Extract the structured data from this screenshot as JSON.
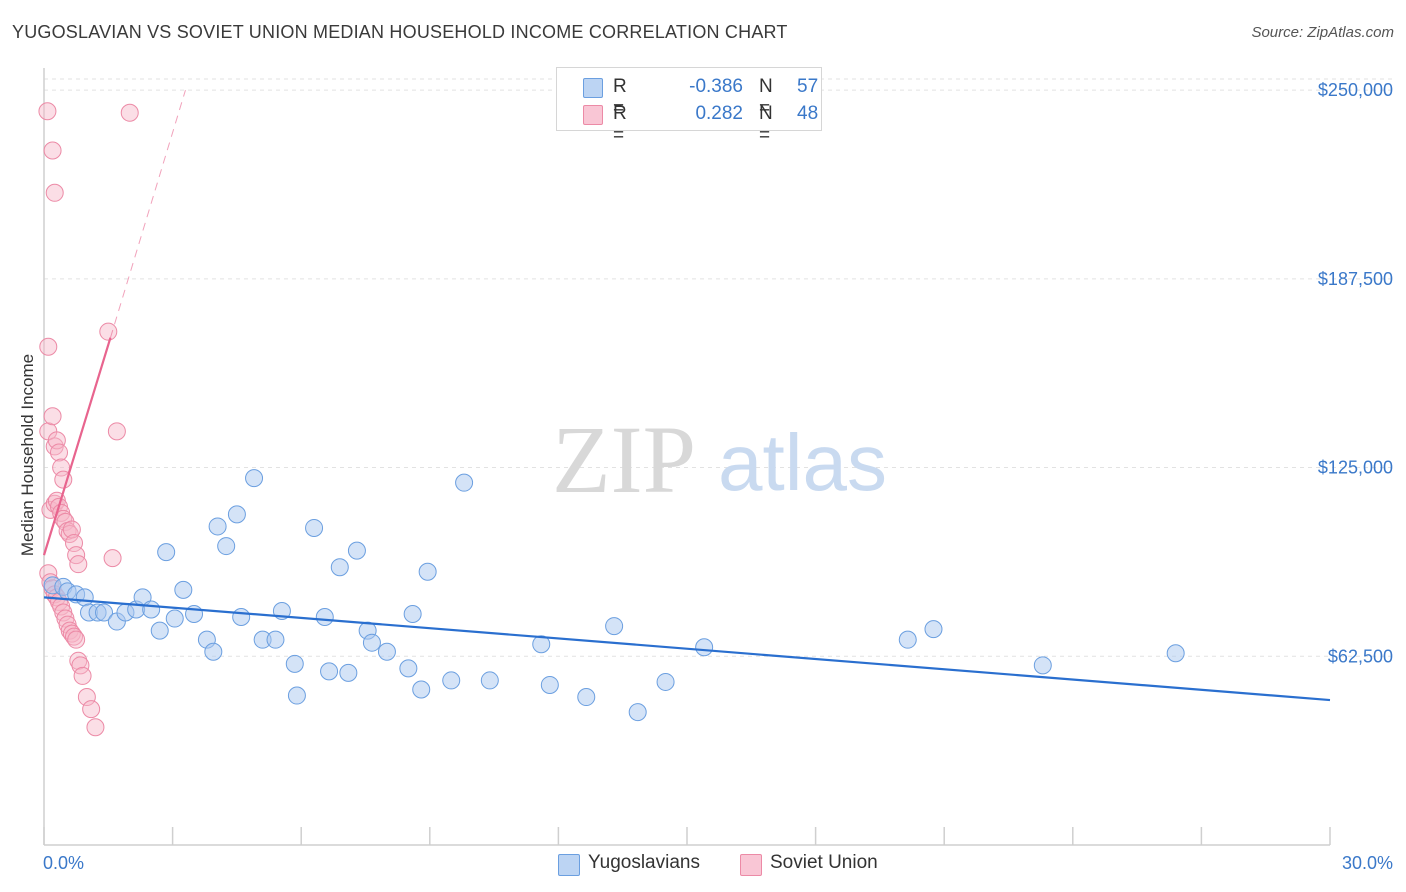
{
  "header": {
    "title": "YUGOSLAVIAN VS SOVIET UNION MEDIAN HOUSEHOLD INCOME CORRELATION CHART",
    "source": "Source: ZipAtlas.com"
  },
  "watermark": {
    "zip": "ZIP",
    "atlas": "atlas"
  },
  "legend": {
    "rows": [
      {
        "r_label": "R =",
        "r_value": "-0.386",
        "n_label": "N =",
        "n_value": "57"
      },
      {
        "r_label": "R =",
        "r_value": "0.282",
        "n_label": "N =",
        "n_value": "48"
      }
    ]
  },
  "colors": {
    "blue_fill": "#a9c8ef",
    "blue_stroke": "#6b9fe0",
    "blue_line": "#2a6fcf",
    "pink_fill": "#f6b6c8",
    "pink_stroke": "#ec8aa6",
    "pink_line": "#e8648e",
    "grid": "#e2e2e2",
    "tick_text": "#3a78c9"
  },
  "chart_data": {
    "type": "scatter",
    "title": "YUGOSLAVIAN VS SOVIET UNION MEDIAN HOUSEHOLD INCOME CORRELATION CHART",
    "xlabel": "",
    "ylabel": "Median Household Income",
    "xlim": [
      0,
      30
    ],
    "ylim": [
      0,
      256000
    ],
    "x_tick_labels": [
      "0.0%",
      "30.0%"
    ],
    "y_ticks": [
      62500,
      125000,
      187500,
      250000
    ],
    "y_tick_labels": [
      "$62,500",
      "$125,000",
      "$187,500",
      "$250,000"
    ],
    "legend_position": "bottom",
    "series": [
      {
        "name": "Yugoslavians",
        "color": "blue",
        "points": [
          [
            0.2,
            86000
          ],
          [
            0.45,
            85500
          ],
          [
            0.55,
            84000
          ],
          [
            0.75,
            83000
          ],
          [
            0.95,
            82000
          ],
          [
            1.05,
            77000
          ],
          [
            1.25,
            77000
          ],
          [
            1.4,
            77000
          ],
          [
            1.7,
            74000
          ],
          [
            1.9,
            77000
          ],
          [
            2.15,
            78000
          ],
          [
            2.3,
            82000
          ],
          [
            2.5,
            78000
          ],
          [
            2.7,
            71000
          ],
          [
            2.85,
            97000
          ],
          [
            3.05,
            75000
          ],
          [
            3.25,
            84500
          ],
          [
            3.5,
            76500
          ],
          [
            3.8,
            68000
          ],
          [
            3.95,
            64000
          ],
          [
            4.05,
            105500
          ],
          [
            4.25,
            99000
          ],
          [
            4.5,
            109500
          ],
          [
            4.6,
            75500
          ],
          [
            4.9,
            121500
          ],
          [
            5.1,
            68000
          ],
          [
            5.4,
            68000
          ],
          [
            5.55,
            77500
          ],
          [
            5.85,
            60000
          ],
          [
            5.9,
            49500
          ],
          [
            6.3,
            105000
          ],
          [
            6.55,
            75500
          ],
          [
            6.65,
            57500
          ],
          [
            6.9,
            92000
          ],
          [
            7.1,
            57000
          ],
          [
            7.3,
            97500
          ],
          [
            7.55,
            71000
          ],
          [
            7.65,
            67000
          ],
          [
            8.0,
            64000
          ],
          [
            8.5,
            58500
          ],
          [
            8.6,
            76500
          ],
          [
            8.8,
            51500
          ],
          [
            8.95,
            90500
          ],
          [
            9.5,
            54500
          ],
          [
            9.8,
            120000
          ],
          [
            10.4,
            54500
          ],
          [
            11.6,
            66500
          ],
          [
            11.8,
            53000
          ],
          [
            12.65,
            49000
          ],
          [
            13.3,
            72500
          ],
          [
            13.85,
            44000
          ],
          [
            14.5,
            54000
          ],
          [
            15.4,
            65500
          ],
          [
            20.15,
            68000
          ],
          [
            20.75,
            71500
          ],
          [
            23.3,
            59500
          ],
          [
            26.4,
            63500
          ]
        ],
        "trend": [
          [
            0,
            82000
          ],
          [
            30,
            48000
          ]
        ]
      },
      {
        "name": "Soviet Union",
        "color": "pink",
        "points": [
          [
            0.08,
            243000
          ],
          [
            0.2,
            230000
          ],
          [
            0.25,
            216000
          ],
          [
            0.1,
            165000
          ],
          [
            0.1,
            137000
          ],
          [
            0.2,
            142000
          ],
          [
            0.25,
            132000
          ],
          [
            0.3,
            134000
          ],
          [
            0.35,
            130000
          ],
          [
            0.4,
            125000
          ],
          [
            0.45,
            121000
          ],
          [
            0.15,
            111000
          ],
          [
            0.25,
            113000
          ],
          [
            0.3,
            114000
          ],
          [
            0.35,
            112000
          ],
          [
            0.4,
            110000
          ],
          [
            0.45,
            108000
          ],
          [
            0.5,
            107000
          ],
          [
            0.55,
            104000
          ],
          [
            0.6,
            103000
          ],
          [
            0.65,
            104500
          ],
          [
            0.7,
            100000
          ],
          [
            0.75,
            96000
          ],
          [
            0.8,
            93000
          ],
          [
            0.1,
            90000
          ],
          [
            0.15,
            87000
          ],
          [
            0.2,
            85000
          ],
          [
            0.25,
            83000
          ],
          [
            0.3,
            82000
          ],
          [
            0.35,
            80500
          ],
          [
            0.4,
            79000
          ],
          [
            0.45,
            77000
          ],
          [
            0.5,
            75000
          ],
          [
            0.55,
            73000
          ],
          [
            0.6,
            71000
          ],
          [
            0.65,
            70000
          ],
          [
            0.7,
            69000
          ],
          [
            0.75,
            68000
          ],
          [
            0.8,
            61000
          ],
          [
            0.85,
            59500
          ],
          [
            0.9,
            56000
          ],
          [
            1.0,
            49000
          ],
          [
            1.1,
            45000
          ],
          [
            1.2,
            39000
          ],
          [
            1.5,
            170000
          ],
          [
            1.6,
            95000
          ],
          [
            1.7,
            137000
          ],
          [
            2.0,
            242500
          ]
        ],
        "trend_solid": [
          [
            0,
            96000
          ],
          [
            1.55,
            168000
          ]
        ],
        "trend_dashed": [
          [
            1.55,
            168000
          ],
          [
            3.3,
            250000
          ]
        ]
      }
    ]
  },
  "bottom_legend": {
    "items": [
      {
        "label": "Yugoslavians"
      },
      {
        "label": "Soviet Union"
      }
    ]
  }
}
